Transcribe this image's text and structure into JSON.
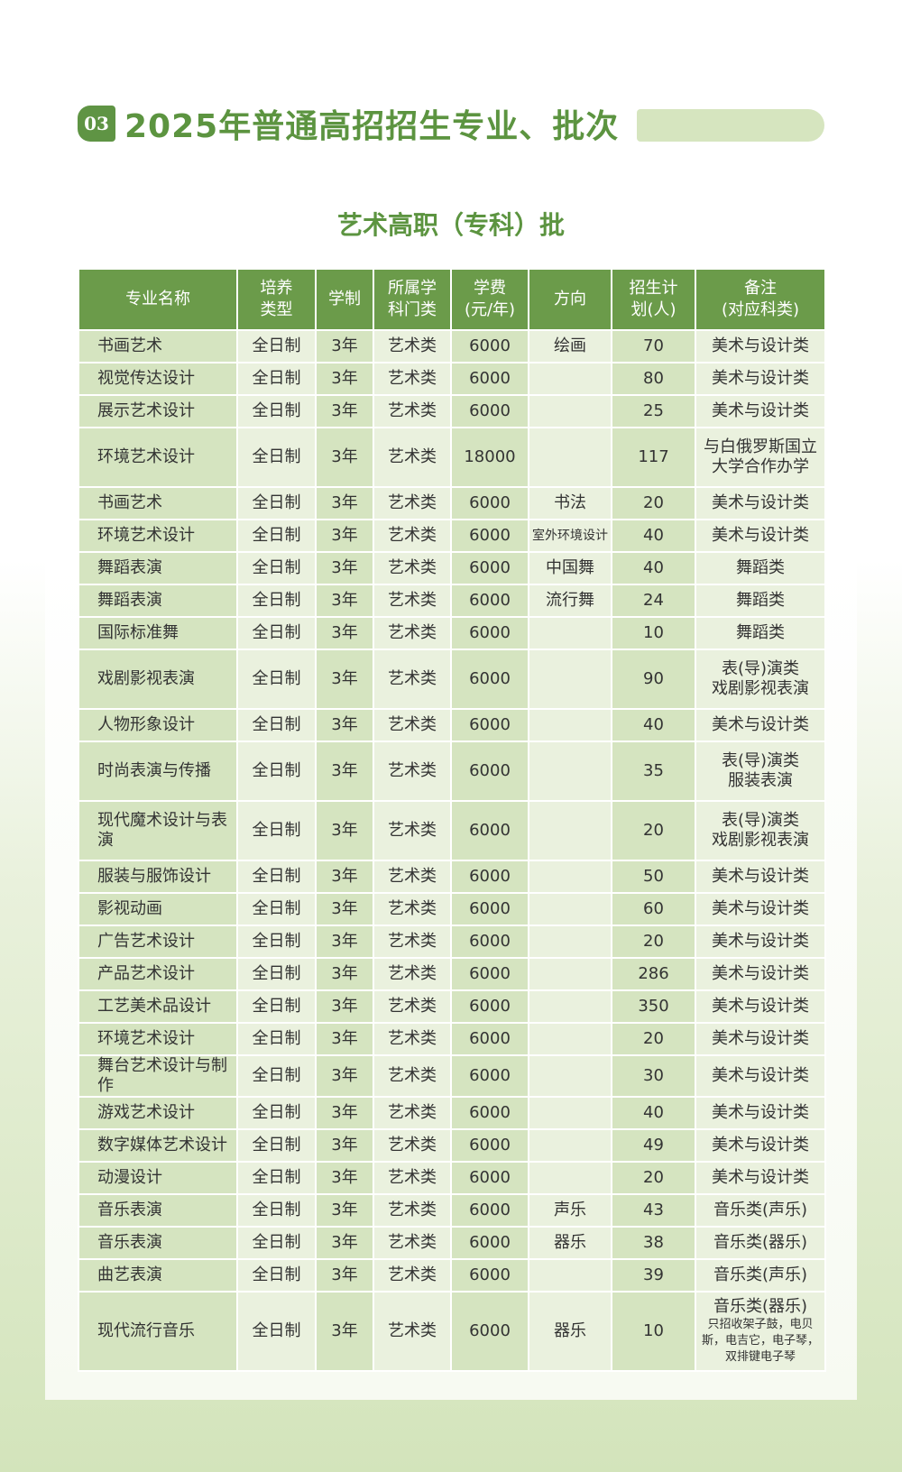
{
  "section": {
    "number": "03",
    "title": "2025年普通高招招生专业、批次"
  },
  "subtitle": "艺术高职（专科）批",
  "colors": {
    "header": "#6b9b4a",
    "title": "#5c9440",
    "cell_dark": "#d5e4c0",
    "cell_light": "#eaf1de"
  },
  "headers": [
    "专业名称",
    "培养类型",
    "学制",
    "所属学科门类",
    "学费(元/年)",
    "方向",
    "招生计划(人)",
    "备注(对应科类)"
  ],
  "header_lines": [
    [
      "专业名称"
    ],
    [
      "培养",
      "类型"
    ],
    [
      "学制"
    ],
    [
      "所属学",
      "科门类"
    ],
    [
      "学费",
      "(元/年)"
    ],
    [
      "方向"
    ],
    [
      "招生计",
      "划(人)"
    ],
    [
      "备注",
      "(对应科类)"
    ]
  ],
  "rows": [
    [
      "书画艺术",
      "全日制",
      "3年",
      "艺术类",
      "6000",
      "绘画",
      "70",
      "美术与设计类"
    ],
    [
      "视觉传达设计",
      "全日制",
      "3年",
      "艺术类",
      "6000",
      "",
      "80",
      "美术与设计类"
    ],
    [
      "展示艺术设计",
      "全日制",
      "3年",
      "艺术类",
      "6000",
      "",
      "25",
      "美术与设计类"
    ],
    [
      "环境艺术设计",
      "全日制",
      "3年",
      "艺术类",
      "18000",
      "",
      "117",
      "与白俄罗斯国立大学合作办学"
    ],
    [
      "书画艺术",
      "全日制",
      "3年",
      "艺术类",
      "6000",
      "书法",
      "20",
      "美术与设计类"
    ],
    [
      "环境艺术设计",
      "全日制",
      "3年",
      "艺术类",
      "6000",
      "室外环境设计",
      "40",
      "美术与设计类"
    ],
    [
      "舞蹈表演",
      "全日制",
      "3年",
      "艺术类",
      "6000",
      "中国舞",
      "40",
      "舞蹈类"
    ],
    [
      "舞蹈表演",
      "全日制",
      "3年",
      "艺术类",
      "6000",
      "流行舞",
      "24",
      "舞蹈类"
    ],
    [
      "国际标准舞",
      "全日制",
      "3年",
      "艺术类",
      "6000",
      "",
      "10",
      "舞蹈类"
    ],
    [
      "戏剧影视表演",
      "全日制",
      "3年",
      "艺术类",
      "6000",
      "",
      "90",
      "表(导)演类 戏剧影视表演"
    ],
    [
      "人物形象设计",
      "全日制",
      "3年",
      "艺术类",
      "6000",
      "",
      "40",
      "美术与设计类"
    ],
    [
      "时尚表演与传播",
      "全日制",
      "3年",
      "艺术类",
      "6000",
      "",
      "35",
      "表(导)演类 服装表演"
    ],
    [
      "现代魔术设计与表演",
      "全日制",
      "3年",
      "艺术类",
      "6000",
      "",
      "20",
      "表(导)演类 戏剧影视表演"
    ],
    [
      "服装与服饰设计",
      "全日制",
      "3年",
      "艺术类",
      "6000",
      "",
      "50",
      "美术与设计类"
    ],
    [
      "影视动画",
      "全日制",
      "3年",
      "艺术类",
      "6000",
      "",
      "60",
      "美术与设计类"
    ],
    [
      "广告艺术设计",
      "全日制",
      "3年",
      "艺术类",
      "6000",
      "",
      "20",
      "美术与设计类"
    ],
    [
      "产品艺术设计",
      "全日制",
      "3年",
      "艺术类",
      "6000",
      "",
      "286",
      "美术与设计类"
    ],
    [
      "工艺美术品设计",
      "全日制",
      "3年",
      "艺术类",
      "6000",
      "",
      "350",
      "美术与设计类"
    ],
    [
      "环境艺术设计",
      "全日制",
      "3年",
      "艺术类",
      "6000",
      "",
      "20",
      "美术与设计类"
    ],
    [
      "舞台艺术设计与制作",
      "全日制",
      "3年",
      "艺术类",
      "6000",
      "",
      "30",
      "美术与设计类"
    ],
    [
      "游戏艺术设计",
      "全日制",
      "3年",
      "艺术类",
      "6000",
      "",
      "40",
      "美术与设计类"
    ],
    [
      "数字媒体艺术设计",
      "全日制",
      "3年",
      "艺术类",
      "6000",
      "",
      "49",
      "美术与设计类"
    ],
    [
      "动漫设计",
      "全日制",
      "3年",
      "艺术类",
      "6000",
      "",
      "20",
      "美术与设计类"
    ],
    [
      "音乐表演",
      "全日制",
      "3年",
      "艺术类",
      "6000",
      "声乐",
      "43",
      "音乐类(声乐)"
    ],
    [
      "音乐表演",
      "全日制",
      "3年",
      "艺术类",
      "6000",
      "器乐",
      "38",
      "音乐类(器乐)"
    ],
    [
      "曲艺表演",
      "全日制",
      "3年",
      "艺术类",
      "6000",
      "",
      "39",
      "音乐类(声乐)"
    ],
    [
      "现代流行音乐",
      "全日制",
      "3年",
      "艺术类",
      "6000",
      "器乐",
      "10",
      "音乐类(器乐)"
    ]
  ],
  "remark_lines": {
    "3": [
      "与白俄罗斯国立",
      "大学合作办学"
    ],
    "9": [
      "表(导)演类",
      "戏剧影视表演"
    ],
    "11": [
      "表(导)演类",
      "服装表演"
    ],
    "12": [
      "表(导)演类",
      "戏剧影视表演"
    ]
  },
  "last_row_note": "只招收架子鼓，电贝斯，电吉它，电子琴，双排键电子琴"
}
